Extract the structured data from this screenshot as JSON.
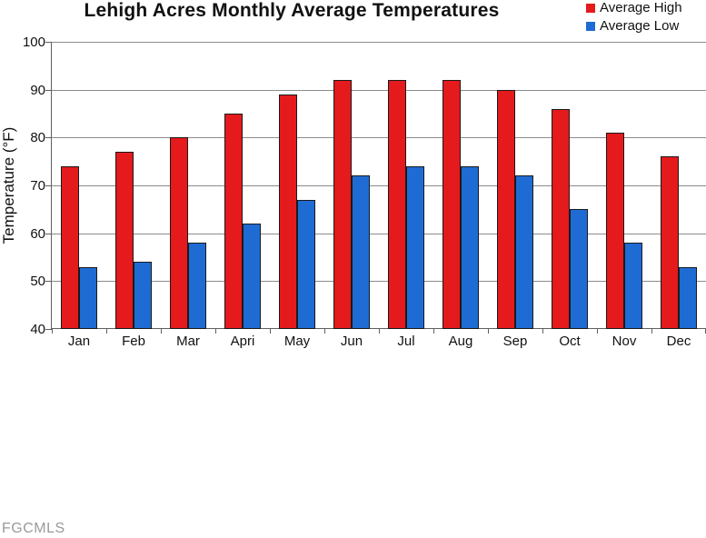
{
  "chart_data": {
    "type": "bar",
    "title": "Lehigh Acres Monthly Average Temperatures",
    "categories": [
      "Jan",
      "Feb",
      "Mar",
      "Apri",
      "May",
      "Jun",
      "Jul",
      "Aug",
      "Sep",
      "Oct",
      "Nov",
      "Dec"
    ],
    "series": [
      {
        "name": "Average High",
        "color": "#e41a1c",
        "values": [
          74,
          77,
          80,
          85,
          89,
          92,
          92,
          92,
          90,
          86,
          81,
          76
        ]
      },
      {
        "name": "Average Low",
        "color": "#1f6bd4",
        "values": [
          53,
          54,
          58,
          62,
          67,
          72,
          74,
          74,
          72,
          65,
          58,
          53
        ]
      }
    ],
    "xlabel": "",
    "ylabel": "Temperature (°F)",
    "ylim": [
      40,
      100
    ],
    "ytick_step": 10,
    "ytick_labels": [
      "40",
      "50",
      "60",
      "70",
      "80",
      "90",
      "100"
    ],
    "grid": true,
    "legend_position": "top-right"
  },
  "footer": {
    "watermark": "FGCMLS"
  },
  "colors": {
    "grid": "#8c8c8c",
    "axis": "#606060",
    "bar_border": "#1a1a1a",
    "high": "#e41a1c",
    "low": "#1f6bd4",
    "watermark": "#9a9a9a"
  }
}
